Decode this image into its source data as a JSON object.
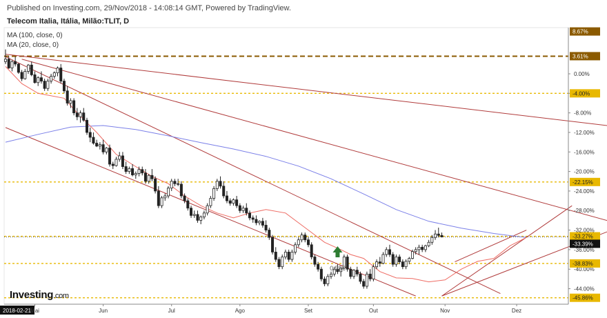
{
  "header": {
    "published": "Published on Investing.com, 29/Nov/2018 - 14:08:14 GMT, Powered by TradingView.",
    "symbol": "Telecom Italia, Itália, Milão:TLIT, D",
    "indicators": [
      "MA (100, close, 0)",
      "MA (20, close, 0)"
    ]
  },
  "logo": {
    "text": "Investing",
    "suffix": ".com"
  },
  "colors": {
    "up_candle": "#ffffff",
    "down_candle": "#222222",
    "ma100": "#7a7fe8",
    "ma20": "#ee6b63",
    "trendline": "#b03a3a",
    "level_brown": "#8b5a00",
    "level_yellow": "#e8b800",
    "axis_text": "#333333",
    "arrow": "#2e7d32"
  },
  "chart_data": {
    "type": "candlestick",
    "y_axis": {
      "unit": "% change",
      "min": -47,
      "max": 10,
      "tick_labels": [
        "0.00%",
        "-4.00%",
        "-8.00%",
        "-12.00%",
        "-16.00%",
        "-20.00%",
        "-24.00%",
        "-28.00%",
        "-32.00%",
        "-36.00%",
        "-40.00%",
        "-44.00%"
      ],
      "tick_values": [
        0,
        -4,
        -8,
        -12,
        -16,
        -20,
        -24,
        -28,
        -32,
        -36,
        -40,
        -44
      ]
    },
    "x_axis": {
      "start_label": "2018-02-21",
      "month_labels": [
        "Mai",
        "Jun",
        "Jul",
        "Ago",
        "Set",
        "Out",
        "Nov",
        "Dez"
      ],
      "month_index": [
        9,
        30,
        51,
        72,
        93,
        113,
        135,
        157
      ]
    },
    "level_lines": [
      {
        "value": 8.67,
        "label": "8.67%",
        "style": "brown-dashed",
        "show_line": false
      },
      {
        "value": 3.61,
        "label": "3.61%",
        "style": "brown-dashed",
        "show_line": true
      },
      {
        "value": -4.0,
        "label": "-4.00%",
        "style": "yellow-dotted",
        "show_line": true
      },
      {
        "value": -22.15,
        "label": "-22.15%",
        "style": "yellow-dotted",
        "show_line": true
      },
      {
        "value": -33.27,
        "label": "-33.27%",
        "style": "yellow-dotted",
        "show_line": true
      },
      {
        "value": -38.83,
        "label": "-38.83%",
        "style": "yellow-dotted",
        "show_line": true
      },
      {
        "value": -45.86,
        "label": "-45.86%",
        "style": "yellow-dotted",
        "show_line": true
      }
    ],
    "current": {
      "value": -33.39,
      "label": "-33.39%"
    },
    "annotation": {
      "label": "0.55€",
      "index": 102,
      "value": -37.0
    },
    "trendlines": [
      {
        "x1": 0,
        "y1": 4.0,
        "x2": 190,
        "y2": -11.0
      },
      {
        "x1": 5,
        "y1": 3.0,
        "x2": 190,
        "y2": -31.0
      },
      {
        "x1": 0,
        "y1": 3.5,
        "x2": 152,
        "y2": -45.0
      },
      {
        "x1": 0,
        "y1": -11.0,
        "x2": 126,
        "y2": -45.5
      },
      {
        "x1": 134,
        "y1": -45.5,
        "x2": 174,
        "y2": -27.0
      },
      {
        "x1": 134,
        "y1": -45.5,
        "x2": 190,
        "y2": -31.0
      },
      {
        "x1": 138,
        "y1": -38.5,
        "x2": 160,
        "y2": -32.0
      }
    ],
    "ma100": [
      [
        0,
        -14
      ],
      [
        10,
        -12.4
      ],
      [
        20,
        -10.9
      ],
      [
        30,
        -10.6
      ],
      [
        40,
        -11.4
      ],
      [
        50,
        -12.7
      ],
      [
        60,
        -14.1
      ],
      [
        70,
        -15.4
      ],
      [
        80,
        -16.9
      ],
      [
        90,
        -18.9
      ],
      [
        100,
        -21.5
      ],
      [
        110,
        -24.6
      ],
      [
        120,
        -27.8
      ],
      [
        130,
        -30.2
      ],
      [
        140,
        -31.6
      ],
      [
        150,
        -32.7
      ],
      [
        157,
        -33.3
      ],
      [
        160,
        -33.5
      ]
    ],
    "ma20": [
      [
        0,
        1.5
      ],
      [
        5,
        -2
      ],
      [
        10,
        -4
      ],
      [
        18,
        -5
      ],
      [
        22,
        -8
      ],
      [
        28,
        -12
      ],
      [
        34,
        -16.5
      ],
      [
        40,
        -19
      ],
      [
        45,
        -21
      ],
      [
        50,
        -22.5
      ],
      [
        55,
        -25
      ],
      [
        60,
        -27
      ],
      [
        65,
        -28.5
      ],
      [
        70,
        -29.5
      ],
      [
        75,
        -28.5
      ],
      [
        80,
        -27.8
      ],
      [
        86,
        -28.5
      ],
      [
        92,
        -31.5
      ],
      [
        98,
        -34.5
      ],
      [
        103,
        -36
      ],
      [
        106,
        -37
      ],
      [
        110,
        -37.8
      ],
      [
        115,
        -40.5
      ],
      [
        120,
        -41.8
      ],
      [
        125,
        -41.9
      ],
      [
        130,
        -42.6
      ],
      [
        135,
        -42.2
      ],
      [
        140,
        -40
      ],
      [
        145,
        -38.4
      ],
      [
        150,
        -37.8
      ],
      [
        155,
        -35.2
      ],
      [
        160,
        -33.5
      ]
    ],
    "candles": [
      [
        2.5,
        5.0,
        2.0,
        3.0
      ],
      [
        3.0,
        3.6,
        1.0,
        1.2
      ],
      [
        1.2,
        2.8,
        0.5,
        2.5
      ],
      [
        2.5,
        3.5,
        1.5,
        2.0
      ],
      [
        2.0,
        2.2,
        0.0,
        0.3
      ],
      [
        0.3,
        0.8,
        -1.5,
        -1.0
      ],
      [
        -1.0,
        1.0,
        -1.2,
        0.5
      ],
      [
        0.5,
        2.0,
        0.0,
        1.8
      ],
      [
        1.8,
        2.5,
        -0.5,
        -0.2
      ],
      [
        -0.2,
        0.5,
        -2.0,
        -1.8
      ],
      [
        -1.8,
        -0.5,
        -2.5,
        -0.8
      ],
      [
        -0.8,
        0.5,
        -2.0,
        -1.5
      ],
      [
        -1.5,
        -1.0,
        -3.5,
        -3.0
      ],
      [
        -3.0,
        -1.0,
        -3.5,
        -1.5
      ],
      [
        -1.5,
        0.0,
        -2.0,
        -0.5
      ],
      [
        -0.5,
        0.5,
        -1.0,
        0.2
      ],
      [
        0.2,
        1.5,
        -0.5,
        1.2
      ],
      [
        1.2,
        2.0,
        -2.0,
        -1.5
      ],
      [
        -1.5,
        -1.0,
        -4.0,
        -3.5
      ],
      [
        -3.5,
        -2.5,
        -6.5,
        -6.0
      ],
      [
        -6.0,
        -5.0,
        -7.0,
        -5.5
      ],
      [
        -5.5,
        -5.0,
        -8.5,
        -8.0
      ],
      [
        -8.0,
        -7.0,
        -9.5,
        -8.8
      ],
      [
        -8.8,
        -7.5,
        -10.0,
        -8.0
      ],
      [
        -8.0,
        -7.0,
        -9.8,
        -9.5
      ],
      [
        -9.5,
        -9.0,
        -12.5,
        -12.0
      ],
      [
        -12.0,
        -11.0,
        -14.0,
        -13.0
      ],
      [
        -13.0,
        -12.0,
        -14.5,
        -14.2
      ],
      [
        -14.2,
        -13.5,
        -15.0,
        -14.8
      ],
      [
        -14.8,
        -14.0,
        -15.5,
        -14.5
      ],
      [
        -14.5,
        -13.5,
        -16.5,
        -16.0
      ],
      [
        -16.0,
        -15.0,
        -16.5,
        -15.2
      ],
      [
        -15.2,
        -14.5,
        -19.0,
        -18.5
      ],
      [
        -18.5,
        -18.0,
        -19.5,
        -18.8
      ],
      [
        -18.8,
        -17.0,
        -19.0,
        -17.5
      ],
      [
        -17.5,
        -16.0,
        -18.0,
        -16.8
      ],
      [
        -16.8,
        -16.0,
        -19.5,
        -19.0
      ],
      [
        -19.0,
        -18.0,
        -20.5,
        -20.0
      ],
      [
        -20.0,
        -19.0,
        -20.5,
        -19.4
      ],
      [
        -19.4,
        -18.5,
        -21.0,
        -20.7
      ],
      [
        -20.7,
        -20.0,
        -21.5,
        -20.4
      ],
      [
        -20.4,
        -19.0,
        -21.0,
        -19.6
      ],
      [
        -19.6,
        -19.0,
        -20.8,
        -20.3
      ],
      [
        -20.3,
        -19.5,
        -22.5,
        -22.0
      ],
      [
        -22.0,
        -20.5,
        -22.5,
        -20.8
      ],
      [
        -20.8,
        -19.5,
        -22.0,
        -21.5
      ],
      [
        -21.5,
        -21.0,
        -24.5,
        -24.0
      ],
      [
        -24.0,
        -23.0,
        -27.5,
        -27.0
      ],
      [
        -27.0,
        -25.0,
        -27.5,
        -25.4
      ],
      [
        -25.4,
        -24.5,
        -26.0,
        -25.0
      ],
      [
        -25.0,
        -23.0,
        -25.5,
        -23.4
      ],
      [
        -23.4,
        -21.5,
        -24.0,
        -22.0
      ],
      [
        -22.0,
        -21.5,
        -23.0,
        -22.5
      ],
      [
        -22.5,
        -21.5,
        -23.0,
        -22.6
      ],
      [
        -22.6,
        -22.0,
        -25.5,
        -25.0
      ],
      [
        -25.0,
        -24.5,
        -26.5,
        -26.0
      ],
      [
        -26.0,
        -25.5,
        -28.0,
        -27.5
      ],
      [
        -27.5,
        -27.0,
        -29.5,
        -29.0
      ],
      [
        -29.0,
        -28.0,
        -29.5,
        -28.8
      ],
      [
        -28.8,
        -28.0,
        -30.5,
        -30.0
      ],
      [
        -30.0,
        -29.0,
        -30.8,
        -29.3
      ],
      [
        -29.3,
        -28.0,
        -29.8,
        -28.5
      ],
      [
        -28.5,
        -26.5,
        -29.0,
        -27.0
      ],
      [
        -27.0,
        -25.0,
        -27.5,
        -25.5
      ],
      [
        -25.5,
        -23.0,
        -26.0,
        -23.5
      ],
      [
        -23.5,
        -21.5,
        -24.0,
        -22.0
      ],
      [
        -22.0,
        -21.0,
        -23.5,
        -23.0
      ],
      [
        -23.0,
        -22.0,
        -25.5,
        -25.0
      ],
      [
        -25.0,
        -24.0,
        -26.5,
        -26.0
      ],
      [
        -26.0,
        -25.5,
        -27.0,
        -26.5
      ],
      [
        -26.5,
        -25.5,
        -27.0,
        -25.8
      ],
      [
        -25.8,
        -25.0,
        -27.5,
        -27.0
      ],
      [
        -27.0,
        -26.5,
        -28.5,
        -28.0
      ],
      [
        -28.0,
        -27.0,
        -28.5,
        -27.5
      ],
      [
        -27.5,
        -26.5,
        -29.0,
        -28.5
      ],
      [
        -28.5,
        -28.0,
        -30.0,
        -29.5
      ],
      [
        -29.5,
        -29.0,
        -30.5,
        -29.8
      ],
      [
        -29.8,
        -29.0,
        -31.0,
        -30.5
      ],
      [
        -30.5,
        -30.0,
        -31.0,
        -30.2
      ],
      [
        -30.2,
        -29.5,
        -31.5,
        -31.0
      ],
      [
        -31.0,
        -30.0,
        -32.5,
        -32.0
      ],
      [
        -32.0,
        -31.5,
        -34.0,
        -33.5
      ],
      [
        -33.5,
        -33.0,
        -37.0,
        -36.5
      ],
      [
        -36.5,
        -35.5,
        -38.5,
        -38.0
      ],
      [
        -38.0,
        -37.5,
        -40.0,
        -39.5
      ],
      [
        -39.5,
        -37.0,
        -40.0,
        -37.5
      ],
      [
        -37.5,
        -36.0,
        -38.0,
        -36.5
      ],
      [
        -36.5,
        -36.0,
        -38.5,
        -38.0
      ],
      [
        -38.0,
        -36.0,
        -38.5,
        -36.5
      ],
      [
        -36.5,
        -34.5,
        -37.0,
        -35.0
      ],
      [
        -35.0,
        -33.5,
        -35.5,
        -34.0
      ],
      [
        -34.0,
        -32.5,
        -34.5,
        -33.0
      ],
      [
        -33.0,
        -32.5,
        -34.5,
        -34.0
      ],
      [
        -34.0,
        -33.5,
        -35.5,
        -35.0
      ],
      [
        -35.0,
        -34.5,
        -38.0,
        -37.5
      ],
      [
        -37.5,
        -37.0,
        -39.5,
        -39.0
      ],
      [
        -39.0,
        -38.5,
        -40.5,
        -40.0
      ],
      [
        -40.0,
        -39.5,
        -42.5,
        -42.0
      ],
      [
        -42.0,
        -41.5,
        -43.5,
        -43.0
      ],
      [
        -43.0,
        -41.0,
        -43.5,
        -41.5
      ],
      [
        -41.5,
        -40.5,
        -42.0,
        -41.0
      ],
      [
        -41.0,
        -39.5,
        -41.5,
        -40.0
      ],
      [
        -40.0,
        -39.0,
        -41.0,
        -40.5
      ],
      [
        -40.5,
        -39.5,
        -41.5,
        -39.8
      ],
      [
        -39.8,
        -37.0,
        -40.0,
        -37.5
      ],
      [
        -37.5,
        -37.0,
        -40.5,
        -40.0
      ],
      [
        -40.0,
        -39.5,
        -42.0,
        -41.5
      ],
      [
        -41.5,
        -40.0,
        -42.0,
        -40.2
      ],
      [
        -40.2,
        -39.5,
        -41.5,
        -41.0
      ],
      [
        -41.0,
        -40.5,
        -43.0,
        -42.5
      ],
      [
        -42.5,
        -42.0,
        -44.0,
        -43.5
      ],
      [
        -43.5,
        -40.5,
        -44.0,
        -41.0
      ],
      [
        -41.0,
        -40.0,
        -42.5,
        -42.0
      ],
      [
        -42.0,
        -39.0,
        -42.5,
        -39.5
      ],
      [
        -39.5,
        -38.0,
        -40.0,
        -38.5
      ],
      [
        -38.5,
        -37.5,
        -39.5,
        -38.8
      ],
      [
        -38.8,
        -36.5,
        -39.0,
        -37.0
      ],
      [
        -37.0,
        -35.5,
        -37.5,
        -36.0
      ],
      [
        -36.0,
        -35.0,
        -37.5,
        -37.0
      ],
      [
        -37.0,
        -36.5,
        -39.5,
        -39.0
      ],
      [
        -39.0,
        -37.0,
        -39.5,
        -37.5
      ],
      [
        -37.5,
        -37.0,
        -39.0,
        -38.5
      ],
      [
        -38.5,
        -38.0,
        -40.0,
        -39.5
      ],
      [
        -39.5,
        -38.0,
        -40.0,
        -38.4
      ],
      [
        -38.4,
        -37.5,
        -39.0,
        -37.8
      ],
      [
        -37.8,
        -36.0,
        -38.0,
        -36.4
      ],
      [
        -36.4,
        -35.5,
        -37.0,
        -36.0
      ],
      [
        -36.0,
        -35.0,
        -37.0,
        -35.5
      ],
      [
        -35.5,
        -35.0,
        -36.5,
        -36.0
      ],
      [
        -36.0,
        -35.0,
        -36.5,
        -35.2
      ],
      [
        -35.2,
        -34.0,
        -35.5,
        -34.5
      ],
      [
        -34.5,
        -33.0,
        -35.0,
        -33.5
      ],
      [
        -33.5,
        -32.0,
        -34.0,
        -32.8
      ],
      [
        -32.8,
        -31.5,
        -33.5,
        -33.1
      ],
      [
        -33.1,
        -32.5,
        -33.5,
        -33.39
      ]
    ]
  }
}
